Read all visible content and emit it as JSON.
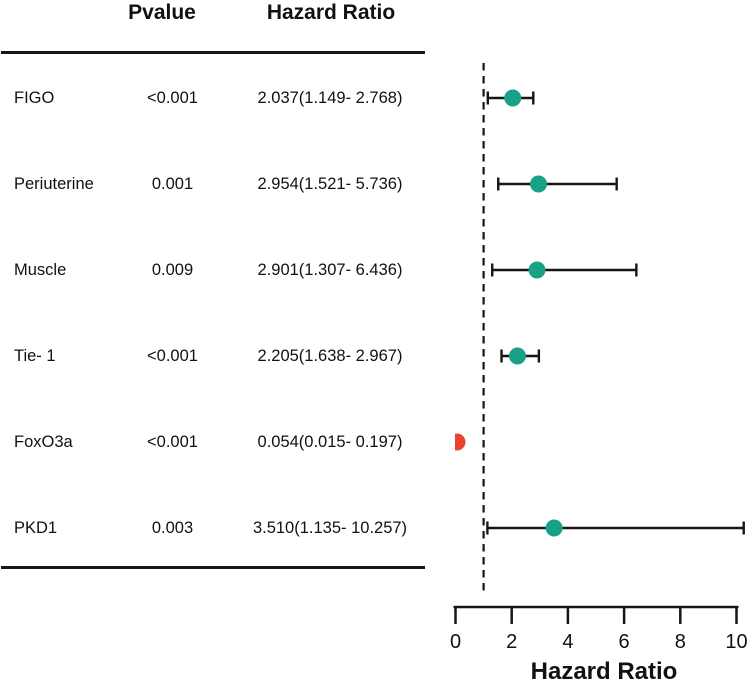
{
  "table": {
    "headers": {
      "pvalue": "Pvalue",
      "hazard_ratio": "Hazard Ratio"
    },
    "rows": [
      {
        "label": "FIGO",
        "pvalue": "<0.001",
        "hr_text": "2.037(1.149- 2.768)"
      },
      {
        "label": "Periuterine",
        "pvalue": "0.001",
        "hr_text": "2.954(1.521- 5.736)"
      },
      {
        "label": "Muscle",
        "pvalue": "0.009",
        "hr_text": "2.901(1.307- 6.436)"
      },
      {
        "label": "Tie- 1",
        "pvalue": "<0.001",
        "hr_text": "2.205(1.638- 2.967)"
      },
      {
        "label": "FoxO3a",
        "pvalue": "<0.001",
        "hr_text": "0.054(0.015- 0.197)"
      },
      {
        "label": "PKD1",
        "pvalue": "0.003",
        "hr_text": "3.510(1.135- 10.257)"
      }
    ]
  },
  "chart_data": {
    "type": "scatter",
    "subtype": "forest-plot",
    "title": "",
    "xlabel": "Hazard Ratio",
    "xlim": [
      0,
      10
    ],
    "x_ticks": [
      0,
      2,
      4,
      6,
      8,
      10
    ],
    "reference_line_x": 1,
    "grid": false,
    "legend": false,
    "categories": [
      "FIGO",
      "Periuterine",
      "Muscle",
      "Tie- 1",
      "FoxO3a",
      "PKD1"
    ],
    "series": [
      {
        "name": "FIGO",
        "hr": 2.037,
        "ci_low": 1.149,
        "ci_high": 2.768,
        "pvalue": "<0.001",
        "color": "#17a287"
      },
      {
        "name": "Periuterine",
        "hr": 2.954,
        "ci_low": 1.521,
        "ci_high": 5.736,
        "pvalue": "0.001",
        "color": "#17a287"
      },
      {
        "name": "Muscle",
        "hr": 2.901,
        "ci_low": 1.307,
        "ci_high": 6.436,
        "pvalue": "0.009",
        "color": "#17a287"
      },
      {
        "name": "Tie- 1",
        "hr": 2.205,
        "ci_low": 1.638,
        "ci_high": 2.967,
        "pvalue": "<0.001",
        "color": "#17a287"
      },
      {
        "name": "FoxO3a",
        "hr": 0.054,
        "ci_low": 0.015,
        "ci_high": 0.197,
        "pvalue": "<0.001",
        "color": "#e8432e"
      },
      {
        "name": "PKD1",
        "hr": 3.51,
        "ci_low": 1.135,
        "ci_high": 10.257,
        "pvalue": "0.003",
        "color": "#17a287"
      }
    ],
    "colors": {
      "point_default": "#17a287",
      "point_highlight": "#e8432e",
      "line": "#161616"
    }
  }
}
